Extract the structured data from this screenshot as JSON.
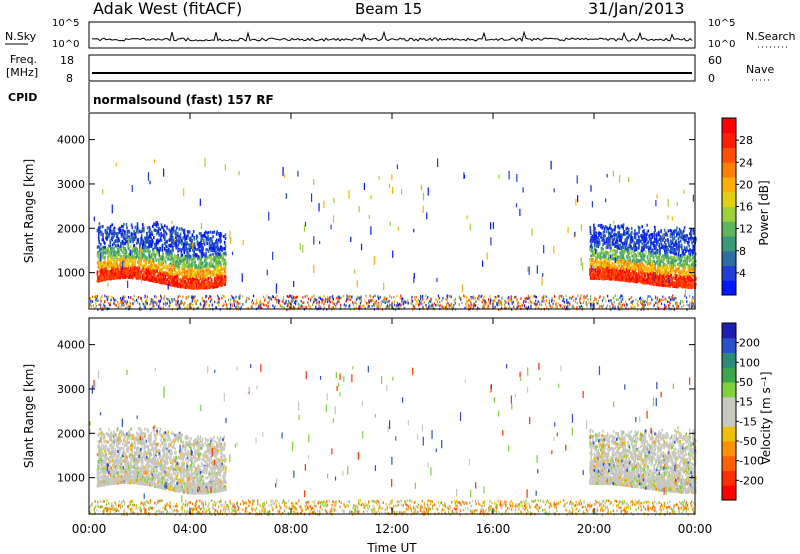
{
  "header": {
    "radar": "Adak West (fitACF)",
    "beam": "Beam 15",
    "date": "31/Jan/2013"
  },
  "noise_panel": {
    "left_label": "N.Sky",
    "right_label": "N.Search",
    "tick_hi": "10^5",
    "tick_lo": "10^0"
  },
  "freq_panel": {
    "left_label_1": "Freq.",
    "left_label_2": "[MHz]",
    "right_label": "Nave",
    "left_ticks": [
      "18",
      "8"
    ],
    "right_ticks": [
      "60",
      "0"
    ]
  },
  "cpid": {
    "label": "CPID",
    "text": "normalsound (fast) 157 RF"
  },
  "chart_data": [
    {
      "type": "heatmap",
      "name": "power",
      "ylabel": "Slant Range [km]",
      "xlabel": "",
      "ylim": [
        180,
        4600
      ],
      "yticks": [
        1000,
        2000,
        3000,
        4000
      ],
      "colorbar": {
        "label": "Power [dB]",
        "ticks": [
          "4",
          "8",
          "12",
          "16",
          "20",
          "24",
          "28"
        ],
        "colors": [
          "#0018ff",
          "#1f3fd8",
          "#2e6ea0",
          "#3a9a7a",
          "#5fb65a",
          "#9bd23c",
          "#e0d010",
          "#ffb000",
          "#ff8000",
          "#ff5000",
          "#ff2000",
          "#ff0000"
        ]
      },
      "echo_regions": [
        {
          "name": "morning echo band",
          "t_start": 0.3,
          "t_end": 5.4,
          "range_low": 800,
          "range_high": 2200
        },
        {
          "name": "evening echo band",
          "t_start": 19.8,
          "t_end": 24.0,
          "range_low": 800,
          "range_high": 2200
        },
        {
          "name": "near-range clutter",
          "t_start": 0.0,
          "t_end": 24.0,
          "range_low": 180,
          "range_high": 500
        }
      ]
    },
    {
      "type": "heatmap",
      "name": "velocity",
      "ylabel": "Slant Range [km]",
      "xlabel": "Time UT",
      "ylim": [
        180,
        4600
      ],
      "yticks": [
        1000,
        2000,
        3000,
        4000
      ],
      "xticks": [
        "00:00",
        "04:00",
        "08:00",
        "12:00",
        "16:00",
        "20:00",
        "00:00"
      ],
      "xlim_hours": [
        0,
        24
      ],
      "colorbar": {
        "label": "Velocity [m s⁻¹]",
        "ticks": [
          "200",
          "100",
          "50",
          "15",
          "-15",
          "-50",
          "-100",
          "-200"
        ],
        "colors": [
          "#1e1eb4",
          "#2a50d0",
          "#2b8a7a",
          "#3aa84a",
          "#7ed23a",
          "#c8c8c0",
          "#c8c8c0",
          "#f0c000",
          "#ff9000",
          "#ff6000",
          "#ff3000",
          "#ff0000"
        ]
      }
    }
  ]
}
